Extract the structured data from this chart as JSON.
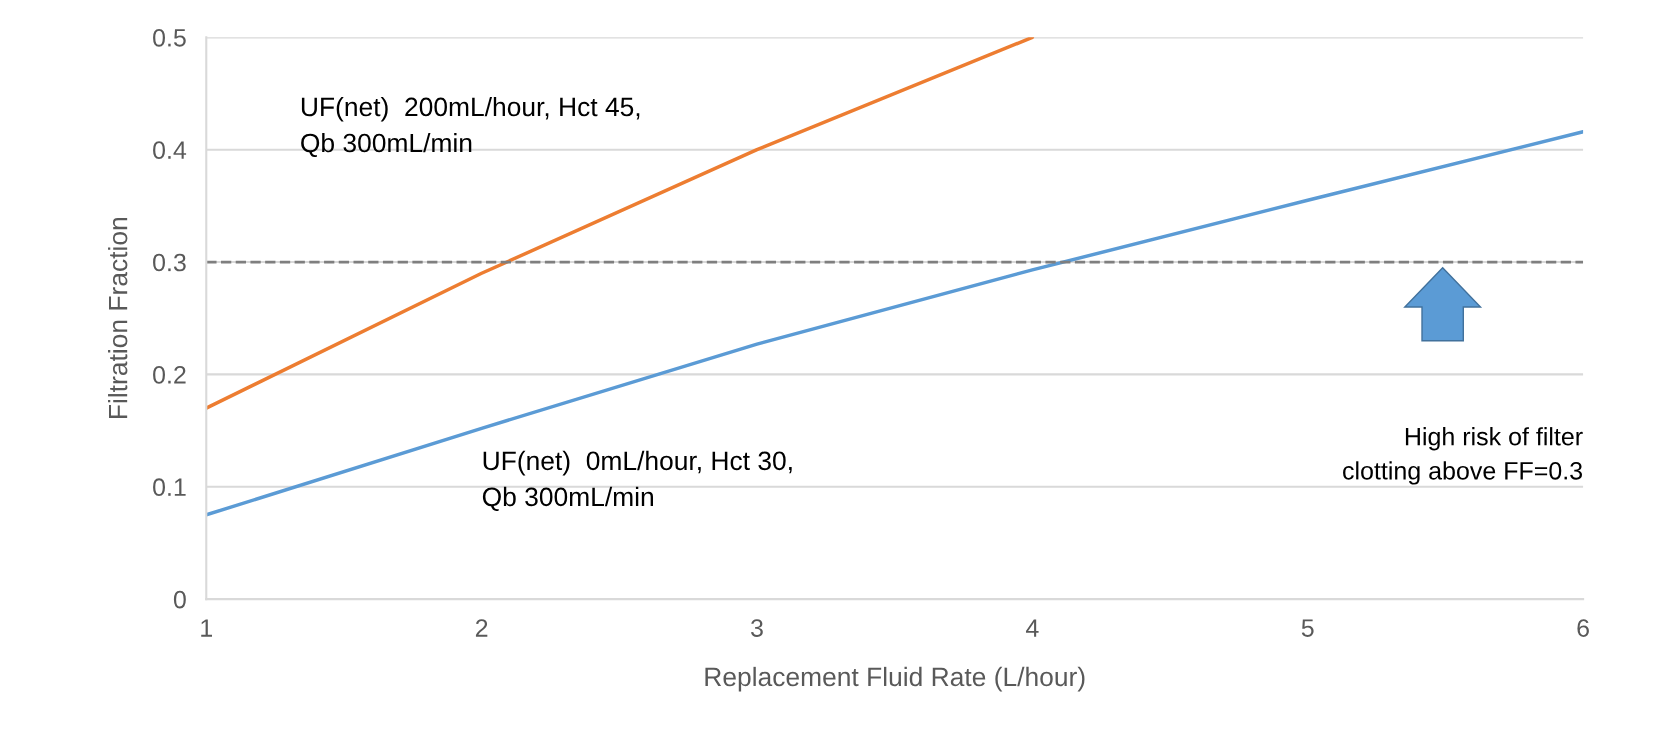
{
  "chart_data": {
    "type": "line",
    "xlabel": "Replacement Fluid Rate (L/hour)",
    "ylabel": "Filtration Fraction",
    "x": [
      1,
      2,
      3,
      4,
      5,
      6
    ],
    "series": [
      {
        "name": "UF(net)  200mL/hour, Hct 45,\nQb 300mL/min",
        "color": "#ed7d31",
        "values": [
          0.17,
          0.29,
          0.4,
          0.5,
          null,
          null
        ]
      },
      {
        "name": "UF(net)  0mL/hour, Hct 30,\nQb 300mL/min",
        "color": "#5b9bd5",
        "values": [
          0.075,
          0.152,
          0.227,
          0.293,
          0.355,
          0.416
        ]
      }
    ],
    "ref_lines": [
      {
        "axis": "y",
        "value": 0.3,
        "color": "#7f7f7f",
        "line_style": "dashed"
      }
    ],
    "annotations": [
      "High risk of filter\nclotting above FF=0.3"
    ],
    "xlim": [
      1,
      6
    ],
    "xticks": [
      1,
      2,
      3,
      4,
      5,
      6
    ],
    "ylim": [
      0,
      0.5
    ],
    "yticks": [
      0,
      0.1,
      0.2,
      0.3,
      0.4,
      0.5
    ],
    "grid": "y",
    "legend": false,
    "marker": "none",
    "line_style": "solid"
  }
}
